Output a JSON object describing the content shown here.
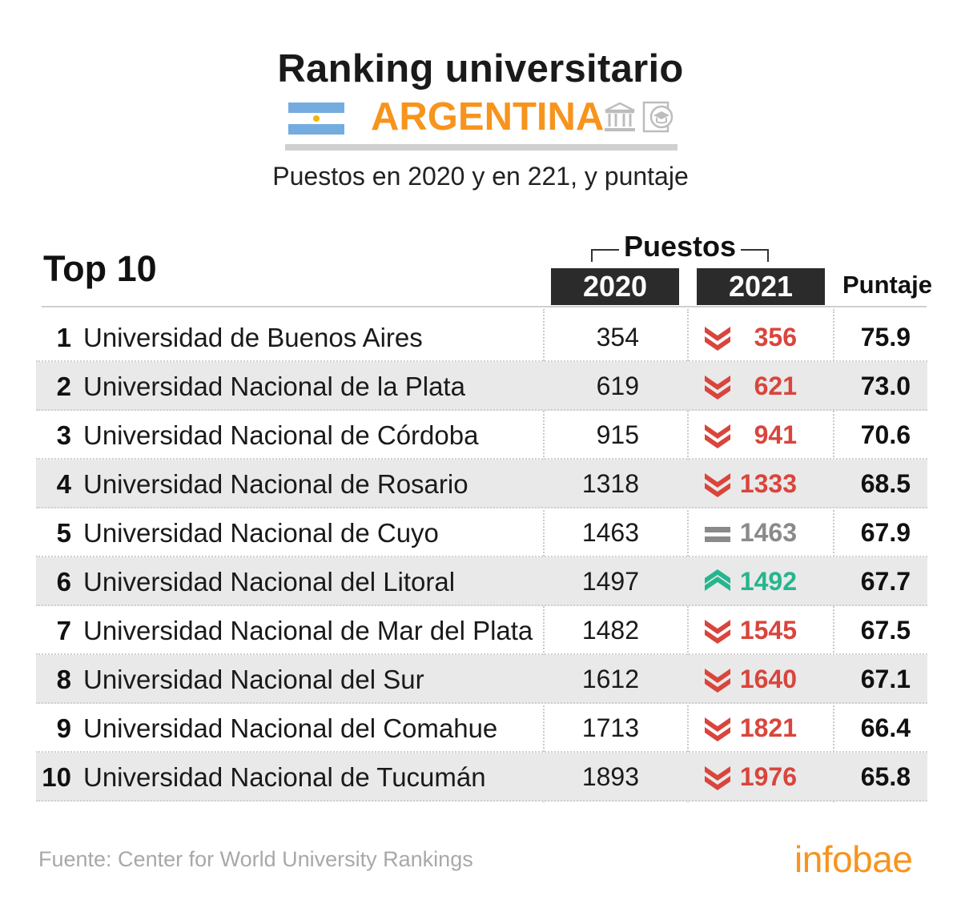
{
  "header": {
    "title": "Ranking universitario",
    "country": "ARGENTINA",
    "subtitle": "Puestos en 2020 y en 221, y puntaje"
  },
  "table": {
    "top_label": "Top 10",
    "group_label": "Puestos",
    "col_2020": "2020",
    "col_2021": "2021",
    "col_score": "Puntaje"
  },
  "colors": {
    "accent": "#f7941d",
    "down": "#d9453c",
    "up": "#26b58f",
    "same": "#8a8a8a",
    "header_bg": "#2b2b2b",
    "row_shade": "#e9e9e9"
  },
  "footer": {
    "source": "Fuente: Center for World University Rankings",
    "brand": "infobae"
  },
  "chart_data": {
    "type": "table",
    "columns": [
      "",
      "",
      "2020",
      "2021",
      "Puntaje"
    ],
    "rows": [
      {
        "rank": "1",
        "name": "Universidad de Buenos Aires",
        "y2020": "354",
        "y2021": "356",
        "trend": "down",
        "score": "75.9"
      },
      {
        "rank": "2",
        "name": "Universidad Nacional de la Plata",
        "y2020": "619",
        "y2021": "621",
        "trend": "down",
        "score": "73.0"
      },
      {
        "rank": "3",
        "name": "Universidad Nacional de Córdoba",
        "y2020": "915",
        "y2021": "941",
        "trend": "down",
        "score": "70.6"
      },
      {
        "rank": "4",
        "name": "Universidad Nacional de Rosario",
        "y2020": "1318",
        "y2021": "1333",
        "trend": "down",
        "score": "68.5"
      },
      {
        "rank": "5",
        "name": "Universidad Nacional de Cuyo",
        "y2020": "1463",
        "y2021": "1463",
        "trend": "same",
        "score": "67.9"
      },
      {
        "rank": "6",
        "name": "Universidad Nacional del Litoral",
        "y2020": "1497",
        "y2021": "1492",
        "trend": "up",
        "score": "67.7"
      },
      {
        "rank": "7",
        "name": "Universidad Nacional de Mar del Plata",
        "y2020": "1482",
        "y2021": "1545",
        "trend": "down",
        "score": "67.5"
      },
      {
        "rank": "8",
        "name": "Universidad Nacional del Sur",
        "y2020": "1612",
        "y2021": "1640",
        "trend": "down",
        "score": "67.1"
      },
      {
        "rank": "9",
        "name": "Universidad Nacional del Comahue",
        "y2020": "1713",
        "y2021": "1821",
        "trend": "down",
        "score": "66.4"
      },
      {
        "rank": "10",
        "name": "Universidad Nacional de Tucumán",
        "y2020": "1893",
        "y2021": "1976",
        "trend": "down",
        "score": "65.8"
      }
    ]
  }
}
